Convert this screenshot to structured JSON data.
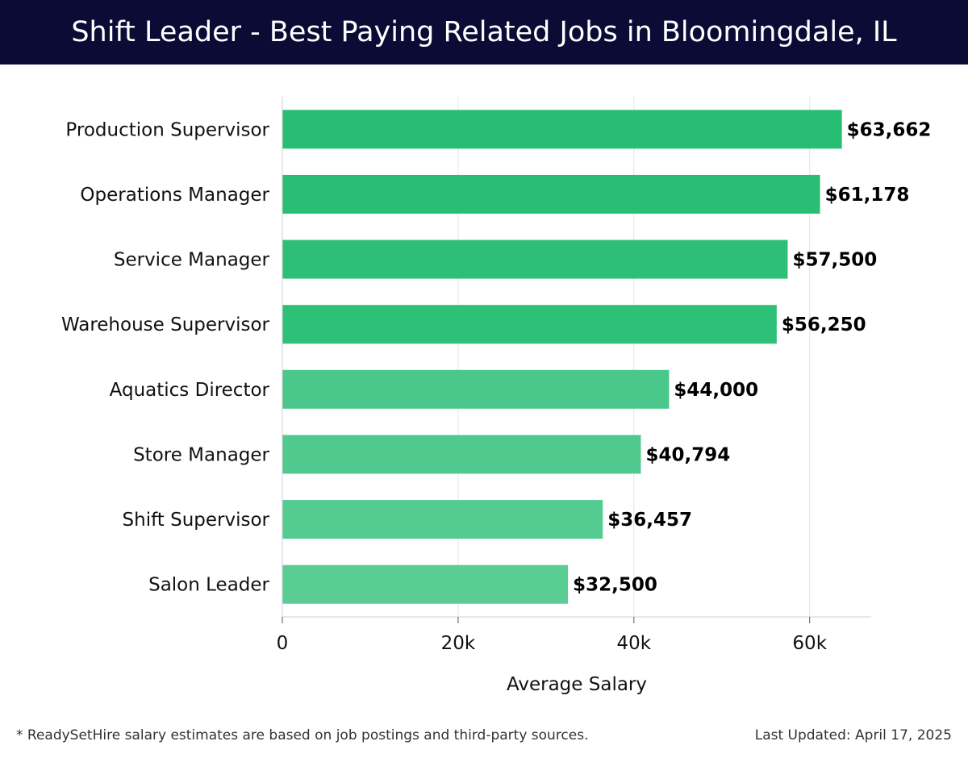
{
  "header": {
    "title": "Shift Leader - Best Paying Related Jobs in Bloomingdale, IL"
  },
  "footer": {
    "note": "* ReadySetHire salary estimates are based on job postings and third-party sources.",
    "updated": "Last Updated: April 17, 2025"
  },
  "chart_data": {
    "type": "bar",
    "orientation": "horizontal",
    "title": "Shift Leader - Best Paying Related Jobs in Bloomingdale, IL",
    "xlabel": "Average Salary",
    "ylabel": "",
    "xlim": [
      0,
      67000
    ],
    "xticks": [
      0,
      20000,
      40000,
      60000
    ],
    "xtick_labels": [
      "0",
      "20k",
      "40k",
      "60k"
    ],
    "grid": true,
    "categories": [
      "Production Supervisor",
      "Operations Manager",
      "Service Manager",
      "Warehouse Supervisor",
      "Aquatics Director",
      "Store Manager",
      "Shift Supervisor",
      "Salon Leader"
    ],
    "values": [
      63662,
      61178,
      57500,
      56250,
      44000,
      40794,
      36457,
      32500
    ],
    "value_labels": [
      "$63,662",
      "$61,178",
      "$57,500",
      "$56,250",
      "$44,000",
      "$40,794",
      "$36,457",
      "$32,500"
    ],
    "colors": [
      "#27bd73",
      "#29be74",
      "#2ebf77",
      "#2fc078",
      "#4ac78a",
      "#4fc98d",
      "#54cb91",
      "#5acd95"
    ]
  }
}
